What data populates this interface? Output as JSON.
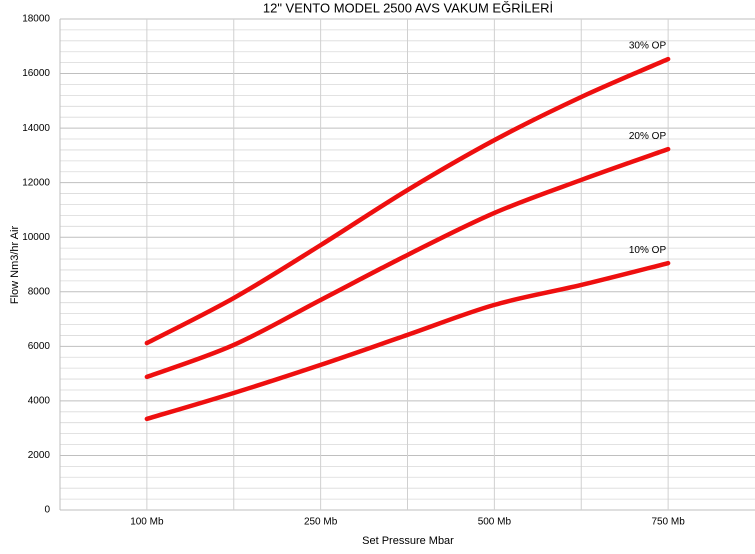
{
  "chart_data": {
    "type": "line",
    "title": "12\" VENTO MODEL 2500 AVS VAKUM EĞRİLERİ",
    "x_label": "Set Pressure Mbar",
    "y_label": "Flow Nm3/hr Air",
    "categories": [
      "100 Mb",
      null,
      "250 Mb",
      null,
      "500 Mb",
      null,
      "750 Mb"
    ],
    "series": [
      {
        "name": "30% OP",
        "color": "#ee0f0f",
        "values": [
          6120,
          7770,
          9710,
          11730,
          13560,
          15140,
          16530
        ]
      },
      {
        "name": "20% OP",
        "color": "#ee0f0f",
        "values": [
          4880,
          6050,
          7700,
          9350,
          10890,
          12100,
          13230
        ]
      },
      {
        "name": "10% OP",
        "color": "#ee0f0f",
        "values": [
          3340,
          4290,
          5320,
          6420,
          7520,
          8250,
          9050
        ]
      }
    ],
    "ylim": [
      0,
      18000
    ],
    "yticks": [
      0,
      2000,
      4000,
      6000,
      8000,
      10000,
      12000,
      14000,
      16000,
      18000
    ],
    "yminorticks": [
      400,
      800,
      1200,
      1600,
      2400,
      2800,
      3200,
      3600,
      4400,
      4800,
      5200,
      5600,
      6400,
      6800,
      7200,
      7600,
      8400,
      8800,
      9200,
      9600,
      10400,
      10800,
      11200,
      11600,
      12400,
      12800,
      13200,
      13600,
      14400,
      14800,
      15200,
      15600,
      16400,
      16800,
      17200,
      17600
    ],
    "grid": true
  }
}
